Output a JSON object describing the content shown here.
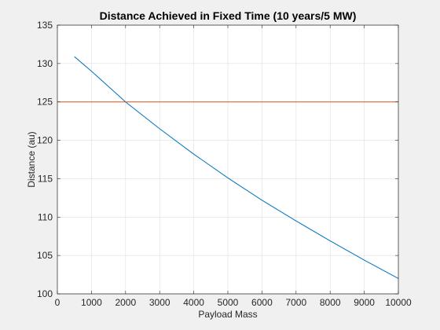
{
  "chart_data": {
    "type": "line",
    "title": "Distance Achieved in Fixed Time (10 years/5 MW)",
    "xlabel": "Payload Mass",
    "ylabel": "Distance (au)",
    "xlim": [
      0,
      10000
    ],
    "ylim": [
      100,
      135
    ],
    "xticks": [
      0,
      1000,
      2000,
      3000,
      4000,
      5000,
      6000,
      7000,
      8000,
      9000,
      10000
    ],
    "yticks": [
      100,
      105,
      110,
      115,
      120,
      125,
      130,
      135
    ],
    "grid": true,
    "series": [
      {
        "color": "#0072BD",
        "x": [
          500,
          1000,
          1500,
          2000,
          3000,
          4000,
          5000,
          6000,
          7000,
          8000,
          9000,
          10000
        ],
        "y": [
          130.9,
          129.0,
          127.0,
          125.0,
          121.5,
          118.2,
          115.1,
          112.2,
          109.5,
          106.9,
          104.4,
          102.0
        ]
      },
      {
        "color": "#D95319",
        "x": [
          0,
          10000
        ],
        "y": [
          125,
          125
        ]
      }
    ]
  }
}
